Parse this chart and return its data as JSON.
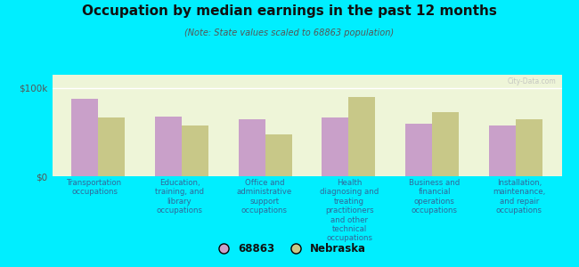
{
  "title": "Occupation by median earnings in the past 12 months",
  "subtitle": "(Note: State values scaled to 68863 population)",
  "background_color": "#00eeff",
  "plot_bg_color": "#eef5d8",
  "categories": [
    "Transportation\noccupations",
    "Education,\ntraining, and\nlibrary\noccupations",
    "Office and\nadministrative\nsupport\noccupations",
    "Health\ndiagnosing and\ntreating\npractitioners\nand other\ntechnical\noccupations",
    "Business and\nfinancial\noperations\noccupations",
    "Installation,\nmaintenance,\nand repair\noccupations"
  ],
  "values_68863": [
    88000,
    68000,
    65000,
    67000,
    60000,
    58000
  ],
  "values_nebraska": [
    67000,
    57000,
    47000,
    90000,
    73000,
    65000
  ],
  "color_68863": "#c9a0c9",
  "color_nebraska": "#c8c888",
  "ylabel_ticks": [
    "$0",
    "$100k"
  ],
  "ytick_values": [
    0,
    100000
  ],
  "legend_label_1": "68863",
  "legend_label_2": "Nebraska",
  "watermark": "City-Data.com",
  "bar_width": 0.32,
  "ylim_max": 115000
}
